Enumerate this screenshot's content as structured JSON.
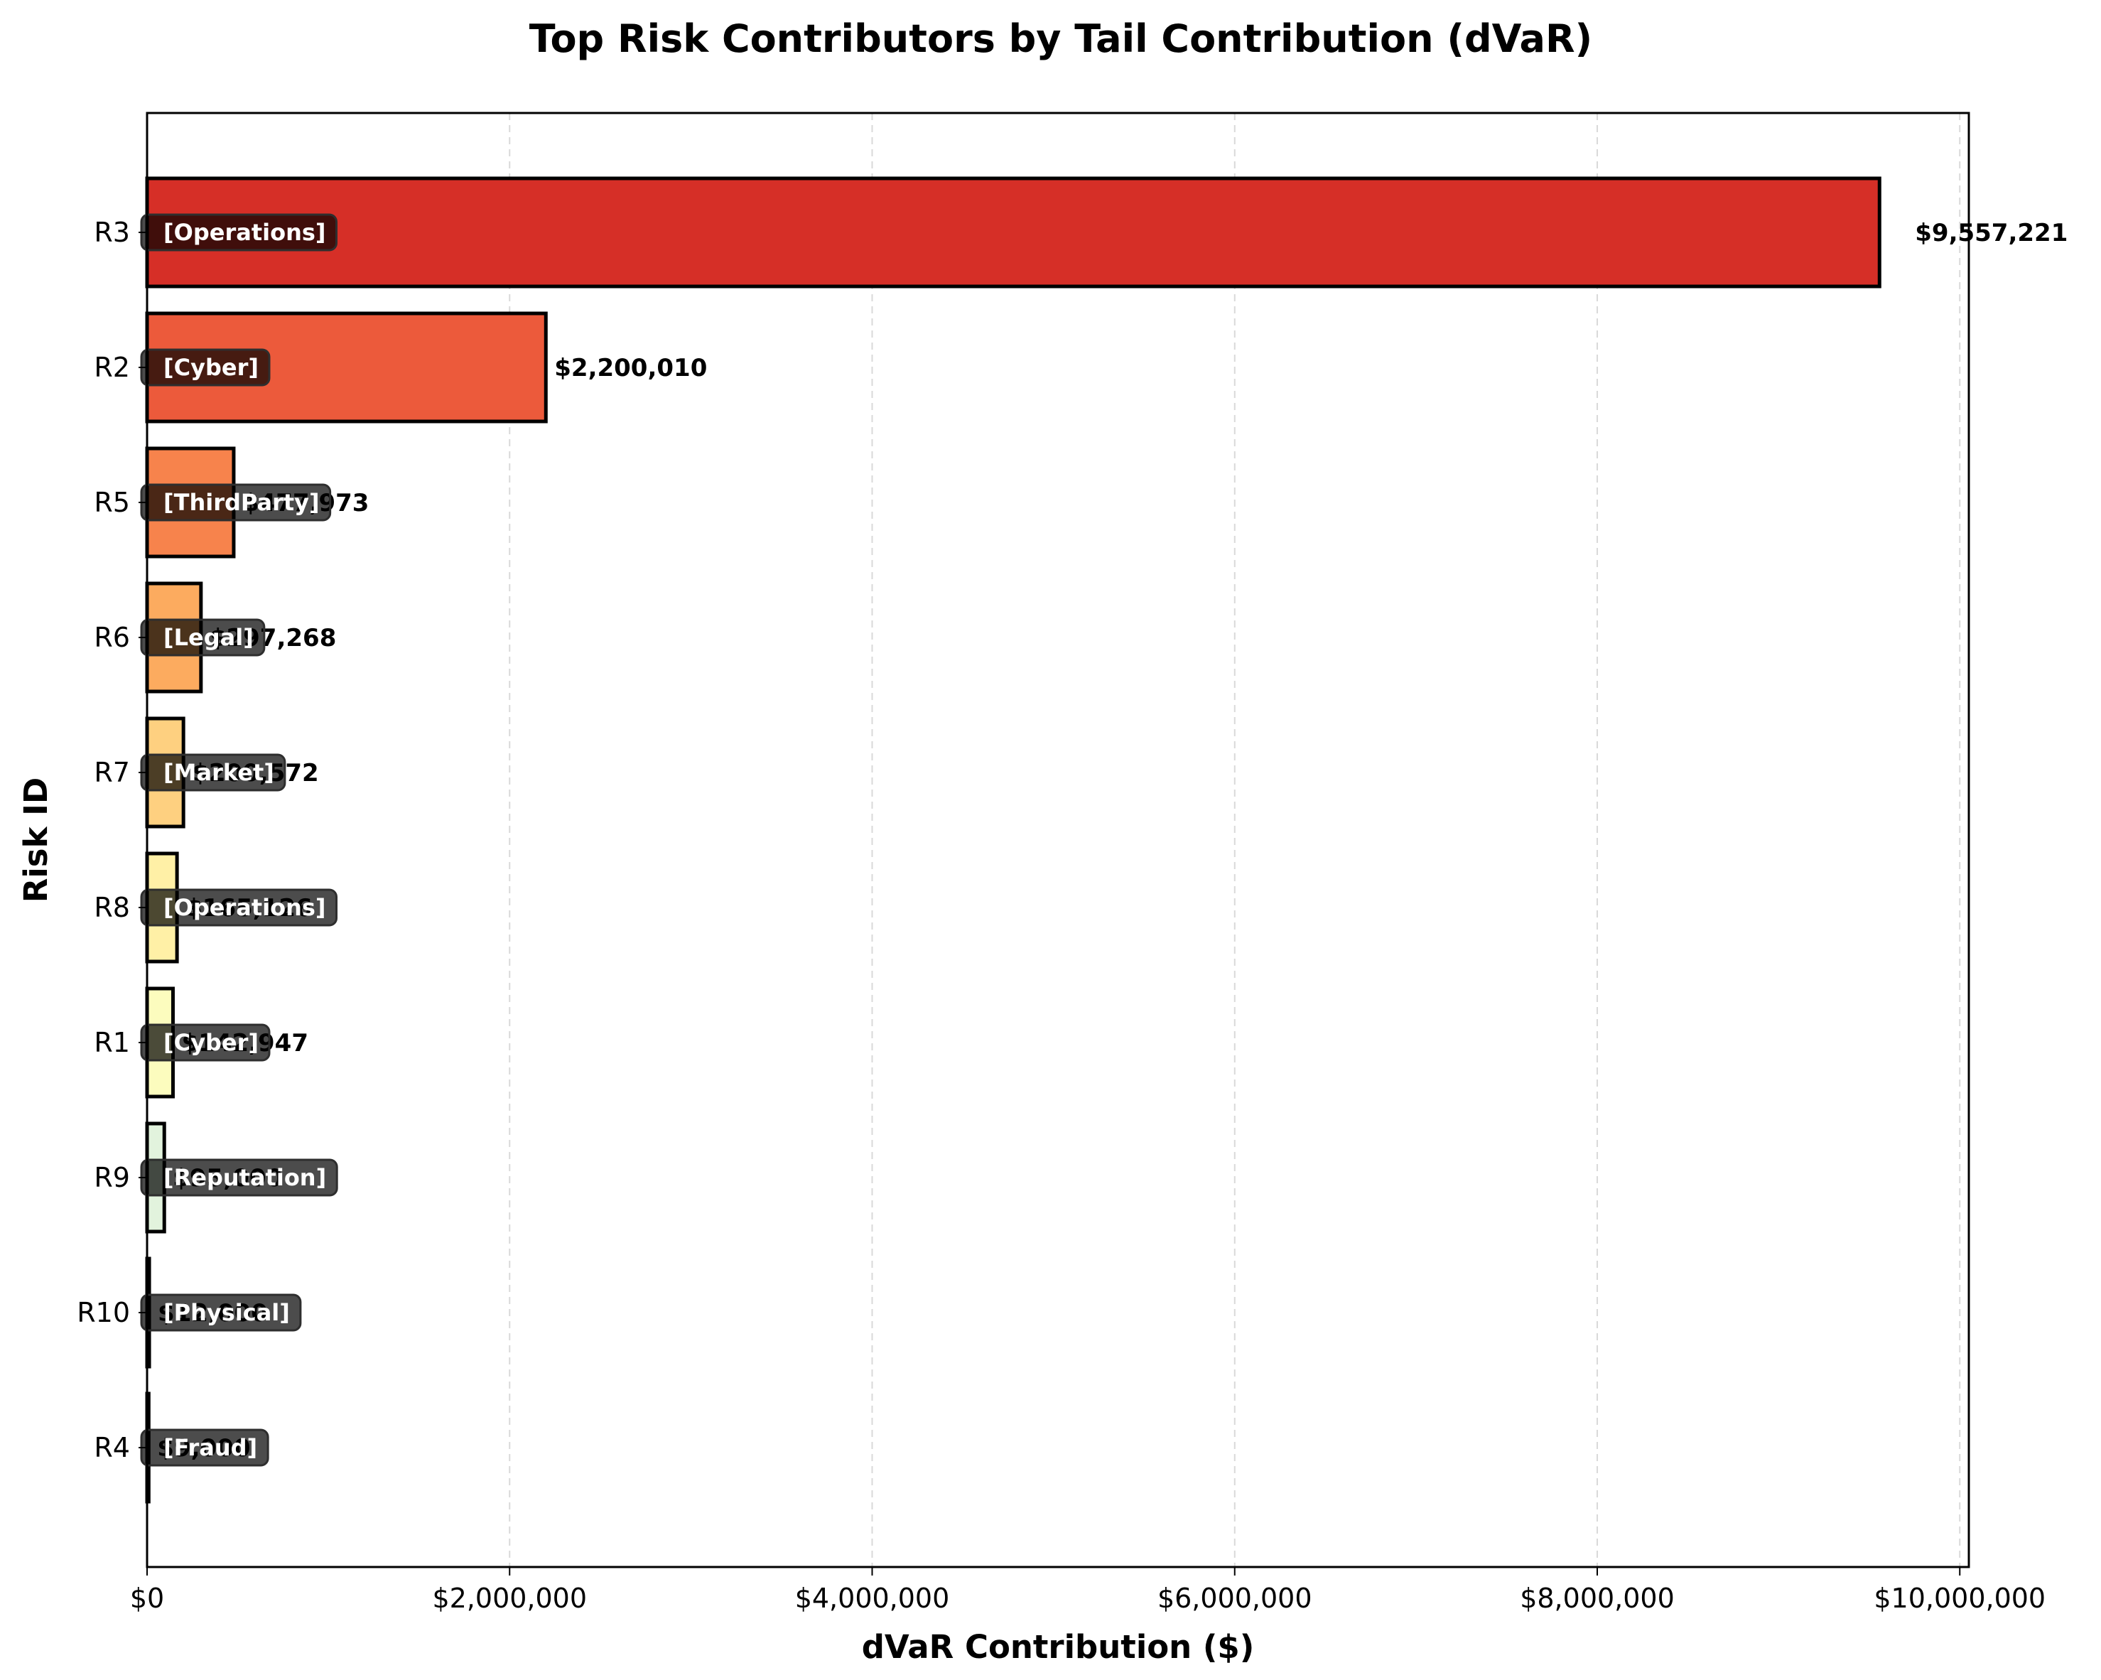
{
  "chart_data": {
    "type": "bar",
    "orientation": "horizontal",
    "title": "Top Risk Contributors by Tail Contribution (dVaR)",
    "xlabel": "dVaR Contribution ($)",
    "ylabel": "Risk ID",
    "xlim": [
      0,
      10050000
    ],
    "xticks": [
      0,
      2000000,
      4000000,
      6000000,
      8000000,
      10000000
    ],
    "xtick_labels": [
      "$0",
      "$2,000,000",
      "$4,000,000",
      "$6,000,000",
      "$8,000,000",
      "$10,000,000"
    ],
    "grid": "x-dashed",
    "categories": [
      "R3",
      "R2",
      "R5",
      "R6",
      "R7",
      "R8",
      "R1",
      "R9",
      "R10",
      "R4"
    ],
    "values": [
      9557221,
      2200010,
      477973,
      297268,
      200572,
      165126,
      142947,
      95000,
      12000,
      9000
    ],
    "value_labels": [
      "$9,557,221",
      "$2,200,010",
      "$477,973",
      "$297,268",
      "$200,572",
      "$165,126",
      "$142,947",
      "$95,000",
      "$12,000",
      "$9,000"
    ],
    "risk_categories": [
      "[Operations]",
      "[Cyber]",
      "[ThirdParty]",
      "[Legal]",
      "[Market]",
      "[Operations]",
      "[Cyber]",
      "[Reputation]",
      "[Physical]",
      "[Fraud]"
    ],
    "colors": [
      "#d62f27",
      "#ec5a3b",
      "#f7834c",
      "#fcab5f",
      "#fed080",
      "#fff0a6",
      "#fcfcbe",
      "#e2f3dd",
      "#c7e6e8",
      "#a9d3e6"
    ]
  }
}
